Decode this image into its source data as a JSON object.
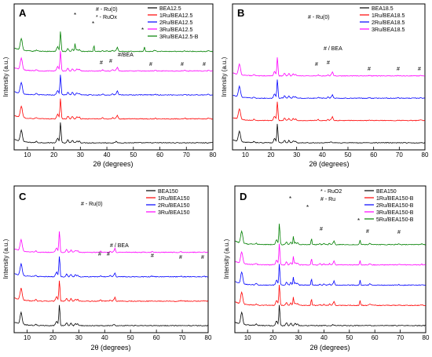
{
  "chart_data": [
    {
      "type": "line",
      "panel_label": "A",
      "xlabel": "2θ (degrees)",
      "ylabel": "Intensity (a.u.)",
      "xlim": [
        5,
        80
      ],
      "xticks": [
        10,
        20,
        30,
        40,
        50,
        60,
        70,
        80
      ],
      "annotations": [
        "# - Ru(0)",
        "* - RuOx",
        "#/BEA",
        "#",
        "*"
      ],
      "series": [
        {
          "name": "BEA12.5",
          "color": "#000000",
          "offset": 0.0
        },
        {
          "name": "1Ru/BEA12.5",
          "color": "#ff0000",
          "offset": 0.22
        },
        {
          "name": "2Ru/BEA12.5",
          "color": "#0000ff",
          "offset": 0.44
        },
        {
          "name": "3Ru/BEA12.5",
          "color": "#ff00ff",
          "offset": 0.66
        },
        {
          "name": "3Ru/BEA12.5-B",
          "color": "#008000",
          "offset": 0.84
        }
      ]
    },
    {
      "type": "line",
      "panel_label": "B",
      "xlabel": "2θ (degrees)",
      "ylabel": "Intensity (a.u.)",
      "xlim": [
        5,
        80
      ],
      "xticks": [
        10,
        20,
        30,
        40,
        50,
        60,
        70,
        80
      ],
      "annotations": [
        "# - Ru(0)",
        "# / BEA",
        "#"
      ],
      "series": [
        {
          "name": "BEA18.5",
          "color": "#000000",
          "offset": 0.0
        },
        {
          "name": "1Ru/BEA18.5",
          "color": "#ff0000",
          "offset": 0.22
        },
        {
          "name": "2Ru/BEA18.5",
          "color": "#0000ff",
          "offset": 0.44
        },
        {
          "name": "3Ru/BEA18.5",
          "color": "#ff00ff",
          "offset": 0.66
        }
      ]
    },
    {
      "type": "line",
      "panel_label": "C",
      "xlabel": "2θ (degrees)",
      "ylabel": "Intensity (a.u.)",
      "xlim": [
        5,
        80
      ],
      "xticks": [
        10,
        20,
        30,
        40,
        50,
        60,
        70,
        80
      ],
      "annotations": [
        "# - Ru(0)",
        "# / BEA",
        "#"
      ],
      "series": [
        {
          "name": "BEA150",
          "color": "#000000",
          "offset": 0.0
        },
        {
          "name": "1Ru/BEA150",
          "color": "#ff0000",
          "offset": 0.22
        },
        {
          "name": "2Ru/BEA150",
          "color": "#0000ff",
          "offset": 0.44
        },
        {
          "name": "3Ru/BEA150",
          "color": "#ff00ff",
          "offset": 0.66
        }
      ]
    },
    {
      "type": "line",
      "panel_label": "D",
      "xlabel": "2θ (degrees)",
      "ylabel": "Intensity (a.u.)",
      "xlim": [
        5,
        80
      ],
      "xticks": [
        10,
        20,
        30,
        40,
        50,
        60,
        70,
        80
      ],
      "annotations": [
        "* - RuO2",
        "# - Ru",
        "*",
        "#"
      ],
      "series": [
        {
          "name": "BEA150",
          "color": "#000000",
          "offset": 0.0
        },
        {
          "name": "1Ru/BEA150-B",
          "color": "#ff0000",
          "offset": 0.18
        },
        {
          "name": "2Ru/BEA150-B",
          "color": "#0000ff",
          "offset": 0.36
        },
        {
          "name": "3Ru/BEA150-B",
          "color": "#ff00ff",
          "offset": 0.54
        },
        {
          "name": "5Ru/BEA150-B",
          "color": "#008000",
          "offset": 0.72
        }
      ]
    }
  ]
}
